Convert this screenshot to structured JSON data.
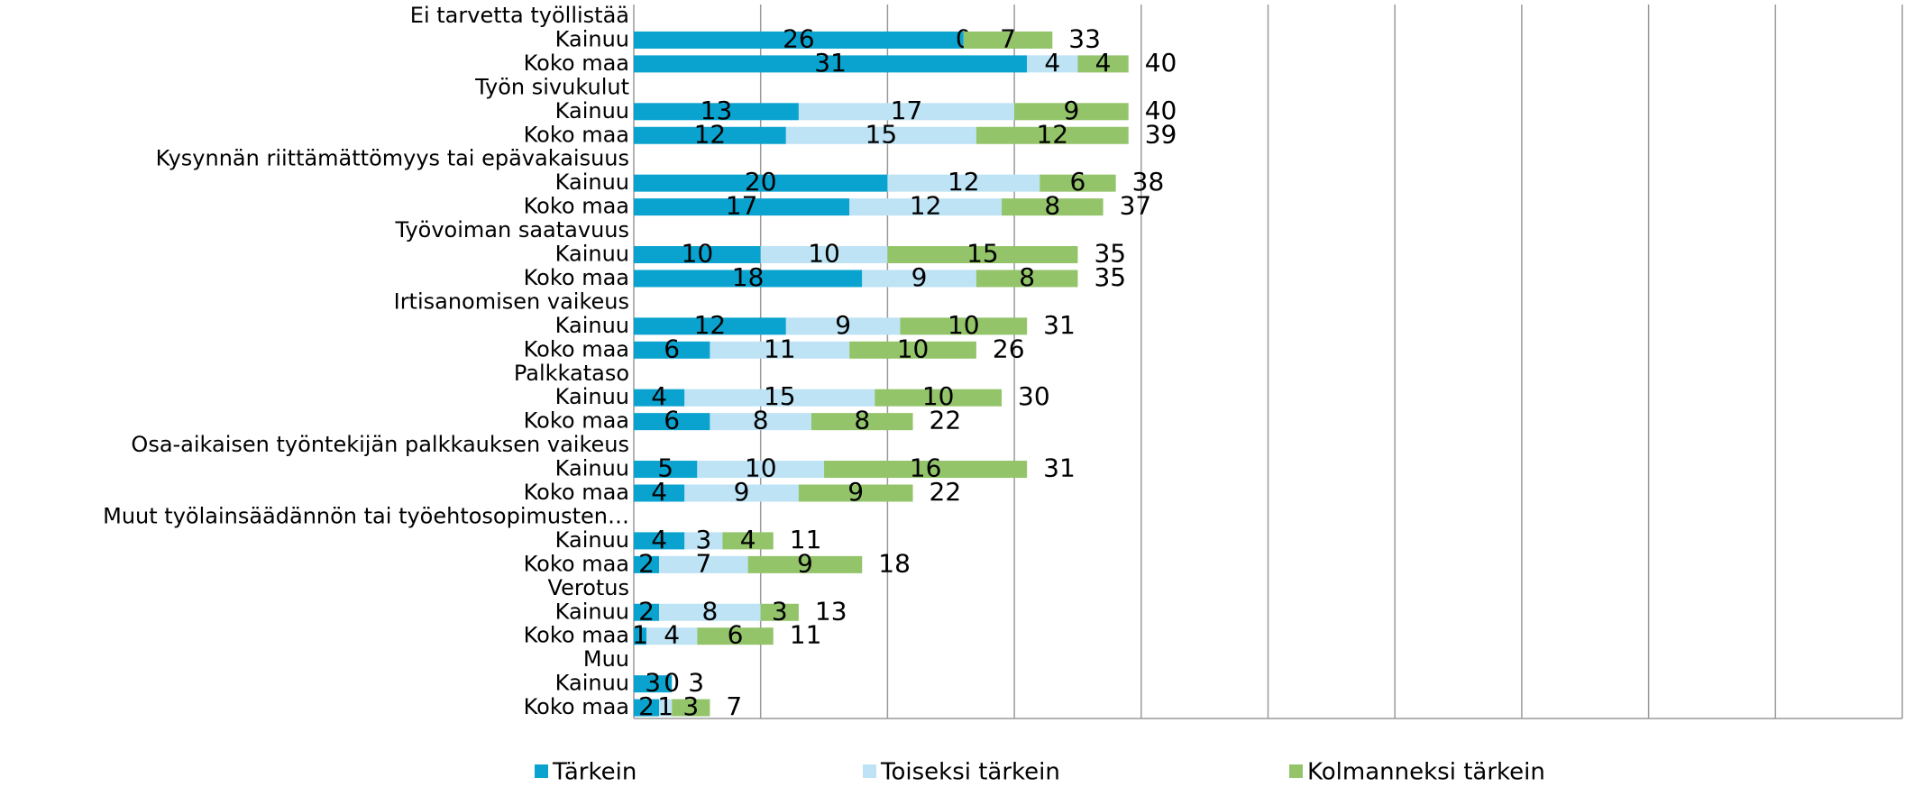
{
  "chart_data": {
    "type": "stacked-bar-horizontal",
    "categories": [
      "Ei tarvetta työllistää",
      "Kainuu",
      "Koko maa",
      "Työn sivukulut",
      "Kainuu",
      "Koko maa",
      "Kysynnän riittämättömyys tai epävakaisuus",
      "Kainuu",
      "Koko maa",
      "Työvoiman saatavuus",
      "Kainuu",
      "Koko maa",
      "Irtisanomisen vaikeus",
      "Kainuu",
      "Koko maa",
      "Palkkataso",
      "Kainuu",
      "Koko maa",
      "Osa-aikaisen työntekijän palkkauksen vaikeus",
      "Kainuu",
      "Koko maa",
      "Muut työlainsäädännön tai työehtosopimusten…",
      "Kainuu",
      "Koko maa",
      "Verotus",
      "Kainuu",
      "Koko maa",
      "Muu",
      "Kainuu",
      "Koko maa"
    ],
    "series": [
      {
        "name": "Tärkein",
        "color": "#0aa3cf",
        "values": [
          null,
          26,
          31,
          null,
          13,
          12,
          null,
          20,
          17,
          null,
          10,
          18,
          null,
          12,
          6,
          null,
          4,
          6,
          null,
          5,
          4,
          null,
          4,
          2,
          null,
          2,
          1,
          null,
          3,
          2
        ]
      },
      {
        "name": "Toiseksi tärkein",
        "color": "#bde3f5",
        "values": [
          null,
          0,
          4,
          null,
          17,
          15,
          null,
          12,
          12,
          null,
          10,
          9,
          null,
          9,
          11,
          null,
          15,
          8,
          null,
          10,
          9,
          null,
          3,
          7,
          null,
          8,
          4,
          null,
          0,
          1
        ]
      },
      {
        "name": "Kolmanneksi tärkein",
        "color": "#93c46a",
        "values": [
          null,
          7,
          4,
          null,
          9,
          12,
          null,
          6,
          8,
          null,
          15,
          8,
          null,
          10,
          10,
          null,
          10,
          8,
          null,
          16,
          9,
          null,
          4,
          9,
          null,
          3,
          6,
          null,
          null,
          3
        ]
      }
    ],
    "totals": [
      null,
      33,
      40,
      null,
      40,
      39,
      null,
      38,
      37,
      null,
      35,
      35,
      null,
      31,
      26,
      null,
      30,
      22,
      null,
      31,
      22,
      null,
      11,
      18,
      null,
      13,
      11,
      null,
      3,
      7
    ],
    "xlim": [
      0,
      100
    ],
    "xticks": [
      0,
      10,
      20,
      30,
      40,
      50,
      60,
      70,
      80,
      90,
      100
    ],
    "grid": true
  }
}
